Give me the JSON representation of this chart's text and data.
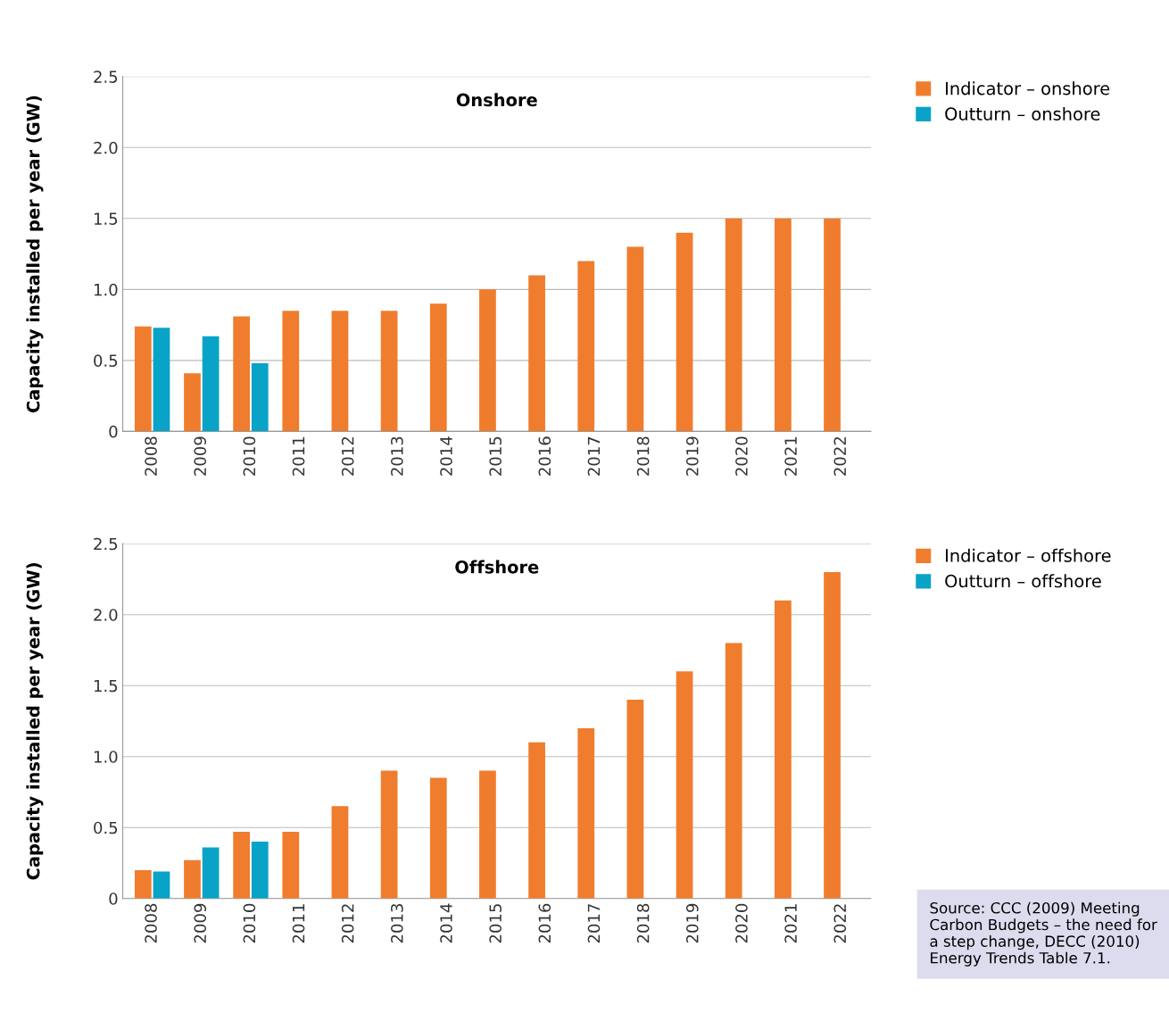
{
  "chart_data": [
    {
      "type": "bar",
      "title": "Onshore",
      "ylabel": "Capacity installed per year (GW)",
      "categories": [
        "2008",
        "2009",
        "2010",
        "2011",
        "2012",
        "2013",
        "2014",
        "2015",
        "2016",
        "2017",
        "2018",
        "2019",
        "2020",
        "2021",
        "2022"
      ],
      "series": [
        {
          "name": "Indicator – onshore",
          "color": "#ef7d2d",
          "values": [
            0.74,
            0.41,
            0.81,
            0.85,
            0.85,
            0.85,
            0.9,
            1.0,
            1.1,
            1.2,
            1.3,
            1.4,
            1.5,
            1.5,
            1.5
          ]
        },
        {
          "name": "Outturn – onshore",
          "color": "#0aa3c8",
          "values": [
            0.73,
            0.67,
            0.48,
            null,
            null,
            null,
            null,
            null,
            null,
            null,
            null,
            null,
            null,
            null,
            null
          ]
        }
      ],
      "ylim": [
        0,
        2.5
      ],
      "yticks": [
        {
          "value": 0,
          "label": "0"
        },
        0.5,
        {
          "value": 1,
          "label": "1.0"
        },
        1.5,
        {
          "value": 2,
          "label": "2.0"
        },
        2.5
      ],
      "grid": "y",
      "legend": "top right"
    },
    {
      "type": "bar",
      "title": "Offshore",
      "ylabel": "Capacity installed per year (GW)",
      "categories": [
        "2008",
        "2009",
        "2010",
        "2011",
        "2012",
        "2013",
        "2014",
        "2015",
        "2016",
        "2017",
        "2018",
        "2019",
        "2020",
        "2021",
        "2022"
      ],
      "series": [
        {
          "name": "Indicator – offshore",
          "color": "#ef7d2d",
          "values": [
            0.2,
            0.27,
            0.47,
            0.47,
            0.65,
            0.9,
            0.85,
            0.9,
            1.1,
            1.2,
            1.4,
            1.6,
            1.8,
            2.1,
            2.3
          ]
        },
        {
          "name": "Outturn – offshore",
          "color": "#0aa3c8",
          "values": [
            0.19,
            0.36,
            0.4,
            null,
            null,
            null,
            null,
            null,
            null,
            null,
            null,
            null,
            null,
            null,
            null
          ]
        }
      ],
      "ylim": [
        0,
        2.5
      ],
      "yticks": [
        {
          "value": 0,
          "label": "0"
        },
        0.5,
        {
          "value": 1,
          "label": "1.0"
        },
        1.5,
        {
          "value": 2,
          "label": "2.0"
        },
        2.5
      ],
      "grid": "y",
      "legend": "top right",
      "annotations": [
        "Source: CCC (2009) Meeting Carbon Budgets – the need for a step change, DECC (2010) Energy Trends Table 7.1."
      ]
    }
  ]
}
